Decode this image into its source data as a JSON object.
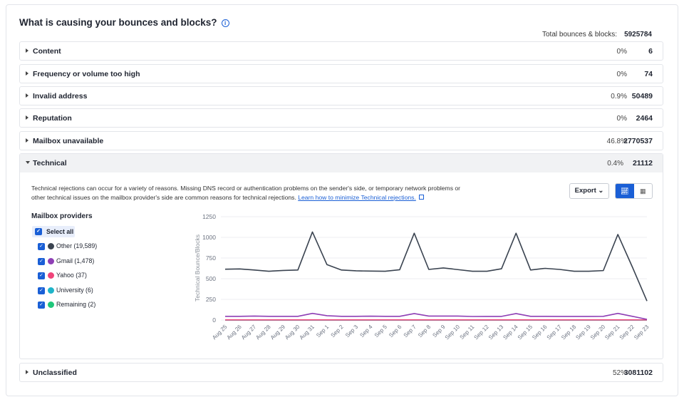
{
  "title": "What is causing your bounces and blocks?",
  "total_label": "Total bounces & blocks:",
  "total_value": "5925784",
  "rows": [
    {
      "label": "Content",
      "pct": "0%",
      "count": "6"
    },
    {
      "label": "Frequency or volume too high",
      "pct": "0%",
      "count": "74"
    },
    {
      "label": "Invalid address",
      "pct": "0.9%",
      "count": "50489"
    },
    {
      "label": "Reputation",
      "pct": "0%",
      "count": "2464"
    },
    {
      "label": "Mailbox unavailable",
      "pct": "46.8%",
      "count": "2770537"
    }
  ],
  "expanded": {
    "label": "Technical",
    "pct": "0.4%",
    "count": "21112",
    "description": "Technical rejections can occur for a variety of reasons. Missing DNS record or authentication problems on the sender's side, or temporary network problems or other technical issues on the mailbox provider's side are common reasons for technical rejections.",
    "link": "Learn how to minimize Technical rejections.",
    "export_label": "Export",
    "providers_title": "Mailbox providers",
    "select_all": "Select all",
    "providers": [
      {
        "label": "Other (19,589)",
        "color": "#3a4350"
      },
      {
        "label": "Gmail (1,478)",
        "color": "#8e3fb5"
      },
      {
        "label": "Yahoo (37)",
        "color": "#f0447a"
      },
      {
        "label": "University (6)",
        "color": "#1fb4c9"
      },
      {
        "label": "Remaining (2)",
        "color": "#1fc67a"
      }
    ]
  },
  "unclassified": {
    "label": "Unclassified",
    "pct": "52%",
    "count": "3081102"
  },
  "chart_data": {
    "type": "line",
    "ylabel": "Technical Bounce/Blocks",
    "ylim": [
      0,
      1250
    ],
    "yticks": [
      0,
      250,
      500,
      750,
      1000,
      1250
    ],
    "grid": true,
    "categories": [
      "Aug 25",
      "Aug 26",
      "Aug 27",
      "Aug 28",
      "Aug 29",
      "Aug 30",
      "Aug 31",
      "Sep 1",
      "Sep 2",
      "Sep 3",
      "Sep 4",
      "Sep 5",
      "Sep 6",
      "Sep 7",
      "Sep 8",
      "Sep 9",
      "Sep 10",
      "Sep 11",
      "Sep 12",
      "Sep 13",
      "Sep 14",
      "Sep 15",
      "Sep 16",
      "Sep 17",
      "Sep 18",
      "Sep 19",
      "Sep 20",
      "Sep 21",
      "Sep 22",
      "Sep 23"
    ],
    "series": [
      {
        "name": "Other",
        "color": "#3a4350",
        "values": [
          615,
          618,
          605,
          590,
          600,
          605,
          1065,
          670,
          605,
          595,
          592,
          590,
          608,
          1050,
          612,
          630,
          610,
          590,
          590,
          620,
          1050,
          605,
          625,
          612,
          590,
          590,
          598,
          1035,
          640,
          230
        ]
      },
      {
        "name": "Gmail",
        "color": "#8e3fb5",
        "values": [
          45,
          45,
          48,
          45,
          45,
          45,
          80,
          52,
          45,
          45,
          47,
          45,
          45,
          78,
          48,
          48,
          48,
          43,
          44,
          44,
          78,
          45,
          45,
          44,
          44,
          44,
          45,
          80,
          45,
          8
        ]
      },
      {
        "name": "Yahoo",
        "color": "#f0447a",
        "values": [
          2,
          2,
          2,
          2,
          2,
          2,
          2,
          2,
          2,
          2,
          2,
          2,
          2,
          2,
          2,
          2,
          2,
          2,
          2,
          2,
          2,
          2,
          2,
          2,
          2,
          2,
          2,
          2,
          2,
          1
        ]
      },
      {
        "name": "University",
        "color": "#1fb4c9",
        "values": [
          0,
          0,
          0,
          0,
          0,
          0,
          0,
          0,
          0,
          0,
          0,
          0,
          0,
          0,
          0,
          0,
          0,
          0,
          0,
          0,
          0,
          0,
          0,
          0,
          0,
          0,
          0,
          0,
          0,
          0
        ]
      },
      {
        "name": "Remaining",
        "color": "#1fc67a",
        "values": [
          0,
          0,
          0,
          0,
          0,
          0,
          0,
          0,
          0,
          0,
          0,
          0,
          0,
          0,
          0,
          0,
          0,
          0,
          0,
          0,
          0,
          0,
          0,
          0,
          0,
          0,
          0,
          0,
          0,
          0
        ]
      }
    ]
  }
}
